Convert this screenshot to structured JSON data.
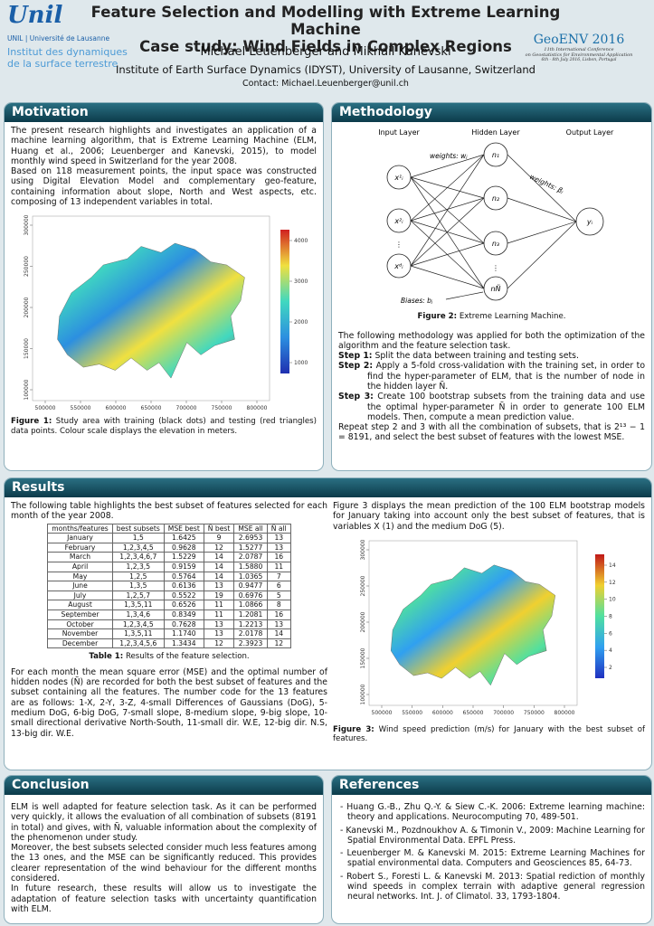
{
  "header": {
    "logo": "Unil",
    "university": "UNIL | Université de Lausanne",
    "institute_lines": [
      "Institut des dynamiques",
      "de la surface terrestre"
    ],
    "title_lines": [
      "Feature Selection and Modelling with Extreme Learning Machine",
      "Case study: Wind Fields in Complex Regions"
    ],
    "authors": "Michael Leuenberger and Mikhail Kanevski",
    "affiliation": "Institute of Earth Surface Dynamics (IDYST), University of Lausanne, Switzerland",
    "contact": "Contact: Michael.Leuenberger@unil.ch",
    "conference": {
      "name": "GeoENV 2016",
      "lines": [
        "11th International Conference",
        "on Geostatistics for Environmental Application",
        "6th - 8th July 2016, Lisbon, Portugal"
      ]
    }
  },
  "motivation": {
    "heading": "Motivation",
    "paragraphs": [
      "The present research highlights and investigates an application of a machine learning algorithm, that is Extreme Learning Machine (ELM, Huang et al., 2006; Leuenberger and Kanevski, 2015), to model monthly wind speed in Switzerland for the year 2008.",
      "Based on 118 measurement points, the input space was constructed using Digital Elevation Model and complementary geo-feature, containing information about slope, North and West aspects, etc. composing of 13 independent variables in total."
    ],
    "figure": {
      "x_ticks": [
        500000,
        550000,
        600000,
        650000,
        700000,
        750000,
        800000
      ],
      "y_ticks": [
        100000,
        150000,
        200000,
        250000,
        300000
      ],
      "colorbar_ticks": [
        1000,
        2000,
        3000,
        4000
      ],
      "caption_label": "Figure 1:",
      "caption": "Study area with training (black dots) and testing (red triangles) data points. Colour scale displays the elevation in meters."
    }
  },
  "methodology": {
    "heading": "Methodology",
    "diagram": {
      "layers": [
        "Input Layer",
        "Hidden Layer",
        "Output Layer"
      ],
      "inputs": [
        "x¹ᵢ",
        "x²ᵢ",
        "⋮",
        "xᵈᵢ"
      ],
      "hidden": [
        "n₁",
        "n₂",
        "n₃",
        "⋮",
        "nÑ"
      ],
      "output": "yᵢ",
      "weights_in": "weights: wⱼ",
      "weights_out": "weights: βⱼ",
      "biases": "Biases: bⱼ",
      "caption_label": "Figure 2:",
      "caption": "Extreme Learning Machine."
    },
    "intro": "The following methodology was applied for both the optimization of the algorithm and the feature selection task.",
    "steps": [
      {
        "label": "Step 1:",
        "text": "Split the data between training and testing sets."
      },
      {
        "label": "Step 2:",
        "text": "Apply a 5-fold cross-validation with the training set, in order to find the hyper-parameter of ELM, that is the number of node in the hidden layer Ñ."
      },
      {
        "label": "Step 3:",
        "text": "Create 100 bootstrap subsets from the training data and use the optimal hyper-parameter Ñ in order to generate 100 ELM models. Then, compute a mean prediction value."
      }
    ],
    "closing": "Repeat step 2 and 3 with all the combination of subsets, that is 2¹³ − 1 = 8191, and select the best subset of features with the lowest MSE."
  },
  "results": {
    "heading": "Results",
    "intro": "The following table highlights the best subset of features selected for each month of the year 2008.",
    "table": {
      "header": [
        "months/features",
        "best subsets",
        "MSE best",
        "Ñ best",
        "MSE all",
        "Ñ all"
      ],
      "rows": [
        [
          "January",
          "1,5",
          "1.6425",
          "9",
          "2.6953",
          "13"
        ],
        [
          "February",
          "1,2,3,4,5",
          "0.9628",
          "12",
          "1.5277",
          "13"
        ],
        [
          "March",
          "1,2,3,4,6,7",
          "1.5229",
          "14",
          "2.0787",
          "16"
        ],
        [
          "April",
          "1,2,3,5",
          "0.9159",
          "14",
          "1.5880",
          "11"
        ],
        [
          "May",
          "1,2,5",
          "0.5764",
          "14",
          "1.0365",
          "7"
        ],
        [
          "June",
          "1,3,5",
          "0.6136",
          "13",
          "0.9477",
          "6"
        ],
        [
          "July",
          "1,2,5,7",
          "0.5522",
          "19",
          "0.6976",
          "5"
        ],
        [
          "August",
          "1,3,5,11",
          "0.6526",
          "11",
          "1.0866",
          "8"
        ],
        [
          "September",
          "1,3,4,6",
          "0.8349",
          "11",
          "1.2081",
          "16"
        ],
        [
          "October",
          "1,2,3,4,5",
          "0.7628",
          "13",
          "1.2213",
          "13"
        ],
        [
          "November",
          "1,3,5,11",
          "1.1740",
          "13",
          "2.0178",
          "14"
        ],
        [
          "December",
          "1,2,3,4,5,6",
          "1.3434",
          "12",
          "2.3923",
          "12"
        ]
      ],
      "caption_label": "Table 1:",
      "caption": "Results of the feature selection."
    },
    "paragraph": "For each month the mean square error (MSE) and the optimal number of hidden nodes (Ñ) are recorded for both the best subset of features and the subset containing all the features. The number code for the 13 features are as follows: 1-X, 2-Y, 3-Z, 4-small Differences of Gaussians (DoG), 5-medium DoG, 6-big DoG, 7-small slope, 8-medium slope, 9-big slope, 10-small directional derivative North-South, 11-small dir. W.E, 12-big dir. N.S, 13-big dir. W.E.",
    "figure_intro": "Figure 3 displays the mean prediction of the 100 ELM bootstrap models for January taking into account only the best subset of features, that is variables X (1) and the medium DoG (5).",
    "figure": {
      "x_ticks": [
        500000,
        550000,
        600000,
        650000,
        700000,
        750000,
        800000
      ],
      "y_ticks": [
        100000,
        150000,
        200000,
        250000,
        300000
      ],
      "colorbar_ticks": [
        2,
        4,
        6,
        8,
        10,
        12,
        14
      ],
      "caption_label": "Figure 3:",
      "caption": "Wind speed prediction (m/s) for January with the best subset of features."
    }
  },
  "conclusion": {
    "heading": "Conclusion",
    "paragraphs": [
      "ELM is well adapted for feature selection task. As it can be performed very quickly, it allows the evaluation of all combination of subsets (8191 in total) and gives, with Ñ, valuable information about the complexity of the phenomenon under study.",
      "Moreover, the best subsets selected consider much less features among the 13 ones, and the MSE can be significantly reduced. This provides clearer representation of the wind behaviour for the different months considered.",
      "In future research, these results will allow us to investigate the adaptation of feature selection tasks with uncertainty quantification with ELM."
    ]
  },
  "references": {
    "heading": "References",
    "items": [
      "Huang G.-B., Zhu Q.-Y. & Siew C.-K. 2006: Extreme learning machine: theory and applications. Neurocomputing 70, 489-501.",
      "Kanevski M., Pozdnoukhov A. & Timonin V., 2009: Machine Learning for Spatial Environmental Data. EPFL Press.",
      "Leuenberger M. & Kanevski M. 2015: Extreme Learning Machines for spatial environmental data. Computers and Geosciences 85, 64-73.",
      "Robert S., Foresti L. & Kanevski M. 2013: Spatial rediction of monthly wind speeds in complex terrain with adaptive general regression neural networks. Int. J. of Climatol. 33, 1793-1804."
    ]
  }
}
